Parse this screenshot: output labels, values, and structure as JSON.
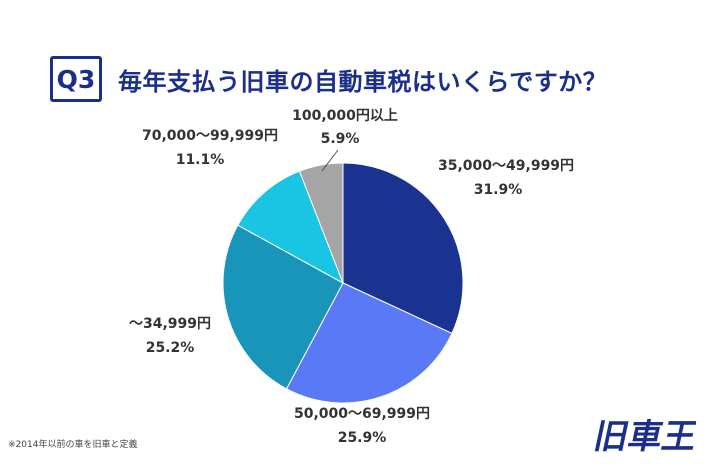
{
  "header": {
    "badge": "Q3",
    "title": "毎年支払う旧車の自動車税はいくらですか？"
  },
  "footnote": "※2014年以前の車を旧車と定義",
  "logo": {
    "text": "旧車王",
    "color": "#1a2e8a"
  },
  "chart_data": {
    "type": "pie",
    "title": "毎年支払う旧車の自動車税はいくらですか？",
    "start": "12 o'clock, clockwise",
    "slices": [
      {
        "label": "35,000〜49,999円",
        "value": 31.9,
        "value_label": "31.9%",
        "color": "#1a3391"
      },
      {
        "label": "50,000〜69,999円",
        "value": 25.9,
        "value_label": "25.9%",
        "color": "#5a79f6"
      },
      {
        "label": "〜34,999円",
        "value": 25.2,
        "value_label": "25.2%",
        "color": "#1a95ba"
      },
      {
        "label": "70,000〜99,999円",
        "value": 11.1,
        "value_label": "11.1%",
        "color": "#19c5e3"
      },
      {
        "label": "100,000円以上",
        "value": 5.9,
        "value_label": "5.9%",
        "color": "#a5a5a5"
      }
    ]
  }
}
